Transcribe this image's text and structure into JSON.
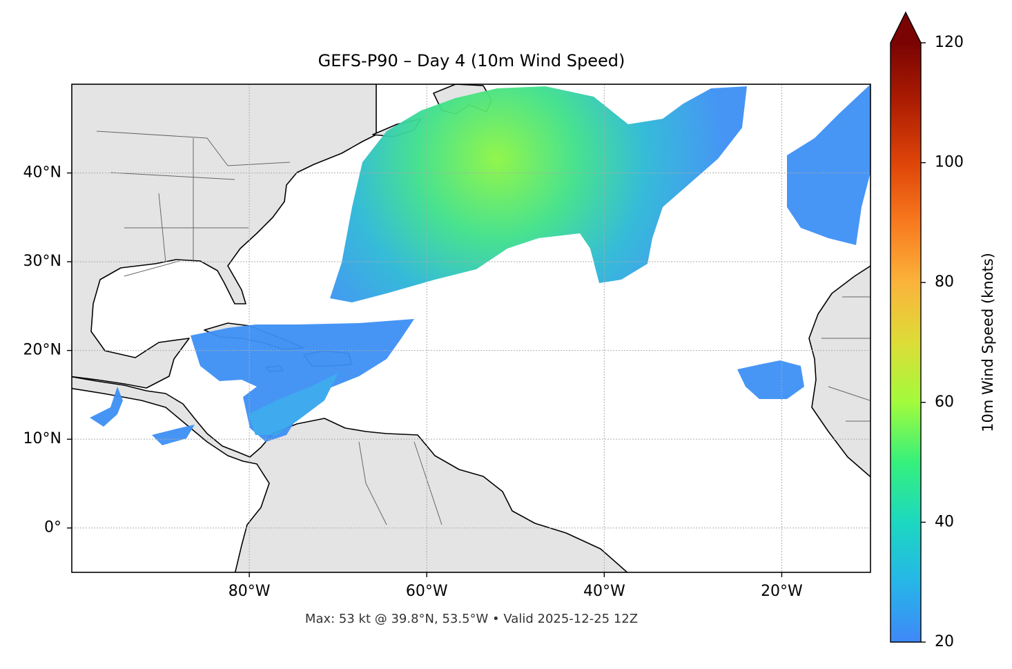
{
  "chart_data": {
    "type": "map",
    "title": "GEFS-P90 – Day 4 (10m Wind Speed)",
    "annotation": "Max: 53 kt @ 39.8°N, 53.5°W • Valid 2025-12-25 12Z",
    "xlim": [
      -100,
      -10
    ],
    "ylim": [
      -5,
      50
    ],
    "xticks": [
      {
        "value": -80,
        "label": "80°W"
      },
      {
        "value": -60,
        "label": "60°W"
      },
      {
        "value": -40,
        "label": "40°W"
      },
      {
        "value": -20,
        "label": "20°W"
      }
    ],
    "yticks": [
      {
        "value": 40,
        "label": "40°N"
      },
      {
        "value": 30,
        "label": "30°N"
      },
      {
        "value": 20,
        "label": "20°N"
      },
      {
        "value": 10,
        "label": "10°N"
      },
      {
        "value": 0,
        "label": "0°"
      }
    ],
    "grid": true,
    "colorbar": {
      "label": "10m Wind Speed (knots)",
      "lim": [
        20,
        120
      ],
      "ticks": [
        20,
        40,
        60,
        80,
        100,
        120
      ],
      "extend": "max"
    }
  }
}
